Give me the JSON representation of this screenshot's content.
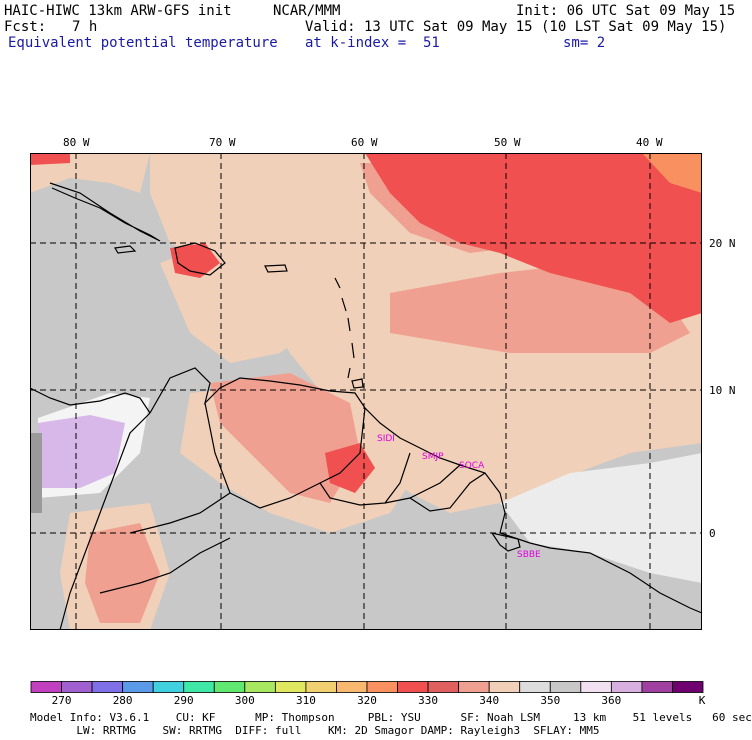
{
  "header": {
    "model_line": "HAIC-HIWC 13km ARW-GFS init",
    "org": "NCAR/MMM",
    "init": "Init: 06 UTC Sat 09 May 15",
    "fcst_label": "Fcst:",
    "fcst_value": "7 h",
    "valid": "Valid: 13 UTC Sat 09 May 15 (10 LST Sat 09 May 15)",
    "field": "Equivalent potential temperature",
    "level": "at k-index =  51",
    "smooth": "sm= 2"
  },
  "map": {
    "lon_labels": [
      "80 W",
      "70 W",
      "60 W",
      "50 W",
      "40 W"
    ],
    "lat_labels": [
      "20 N",
      "10 N",
      "0"
    ],
    "stations": [
      "SIDI",
      "SMJP",
      "SOCA",
      "SBBE"
    ]
  },
  "colorbar": {
    "colors": [
      "#c040c0",
      "#a060d0",
      "#7f70e8",
      "#5a9ae8",
      "#40d0e0",
      "#40e8a8",
      "#60e870",
      "#a8e860",
      "#e0e860",
      "#f0d070",
      "#f8b870",
      "#f89060",
      "#f05050",
      "#e06060",
      "#f0a090",
      "#f0d0b8",
      "#dcdcdc",
      "#c8c8c8",
      "#f0e0f0",
      "#d8b0e0",
      "#a040a0",
      "#700070"
    ],
    "ticks": [
      "270",
      "280",
      "290",
      "300",
      "310",
      "320",
      "330",
      "340",
      "350",
      "360"
    ],
    "unit": "K"
  },
  "footer": {
    "line1": "Model Info: V3.6.1    CU: KF      MP: Thompson     PBL: YSU      SF: Noah LSM     13 km    51 levels   60 sec",
    "line2": "       LW: RRTMG    SW: RRTMG  DIFF: full    KM: 2D Smagor DAMP: Rayleigh3  SFLAY: MM5"
  }
}
